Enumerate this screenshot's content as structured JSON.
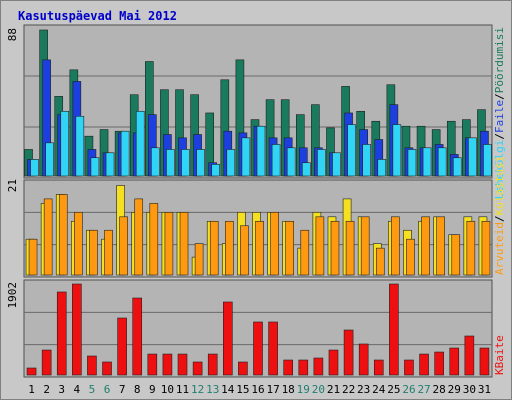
{
  "title": "Kasutuspäevad Mai 2012",
  "legend_separator": "/",
  "x_label_colors": [
    "#000000",
    "#000000",
    "#000000",
    "#000000",
    "#208070",
    "#208070",
    "#000000",
    "#000000",
    "#000000",
    "#000000",
    "#000000",
    "#208070",
    "#208070",
    "#000000",
    "#000000",
    "#000000",
    "#000000",
    "#000000",
    "#208070",
    "#208070",
    "#000000",
    "#000000",
    "#000000",
    "#000000",
    "#000000",
    "#208070",
    "#208070",
    "#000000",
    "#000000",
    "#000000",
    "#000000"
  ],
  "chart_data": [
    {
      "type": "bar",
      "categories": [
        "1",
        "2",
        "3",
        "4",
        "5",
        "6",
        "7",
        "8",
        "9",
        "10",
        "11",
        "12",
        "13",
        "14",
        "15",
        "16",
        "17",
        "18",
        "19",
        "20",
        "21",
        "22",
        "23",
        "24",
        "25",
        "26",
        "27",
        "28",
        "29",
        "30",
        "31"
      ],
      "ylim": [
        0,
        88
      ],
      "yticks": [
        88
      ],
      "series": [
        {
          "name": "Pöördumisi",
          "color": "#1a7a5e",
          "values": [
            16,
            88,
            48,
            64,
            24,
            28,
            27,
            49,
            69,
            52,
            52,
            49,
            38,
            58,
            70,
            34,
            46,
            46,
            37,
            43,
            29,
            54,
            39,
            33,
            55,
            30,
            30,
            28,
            33,
            34,
            40
          ]
        },
        {
          "name": "Faile",
          "color": "#1d3fe0",
          "values": [
            10,
            70,
            37,
            57,
            16,
            14,
            26,
            26,
            37,
            25,
            23,
            25,
            8,
            27,
            26,
            30,
            23,
            23,
            17,
            17,
            14,
            38,
            28,
            22,
            43,
            17,
            17,
            19,
            13,
            23,
            27
          ]
        },
        {
          "name": "Lehekülgi",
          "color": "#30d4f4",
          "values": [
            10,
            20,
            39,
            36,
            11,
            14,
            27,
            39,
            17,
            16,
            16,
            16,
            7,
            16,
            23,
            30,
            19,
            17,
            8,
            16,
            14,
            31,
            19,
            10,
            31,
            16,
            17,
            17,
            11,
            23,
            19
          ]
        }
      ]
    },
    {
      "type": "bar",
      "ylim": [
        0,
        21
      ],
      "yticks": [
        21
      ],
      "series": [
        {
          "name": "Külastusi",
          "color": "#f4e020",
          "values": [
            8,
            16,
            18,
            12,
            10,
            8,
            20,
            14,
            14,
            14,
            14,
            4,
            12,
            7,
            14,
            14,
            14,
            12,
            6,
            14,
            13,
            17,
            13,
            7,
            12,
            10,
            12,
            13,
            9,
            13,
            13
          ]
        },
        {
          "name": "Arvuteid",
          "color": "#ff9a10",
          "values": [
            8,
            17,
            18,
            14,
            10,
            10,
            13,
            17,
            16,
            14,
            14,
            7,
            12,
            12,
            11,
            12,
            14,
            12,
            10,
            13,
            12,
            12,
            13,
            6,
            13,
            8,
            13,
            13,
            9,
            12,
            12
          ]
        }
      ]
    },
    {
      "type": "bar",
      "ylim": [
        0,
        1902
      ],
      "yticks": [
        1902
      ],
      "series": [
        {
          "name": "KBaite",
          "color": "#ee1010",
          "values": [
            146,
            522,
            1735,
            1902,
            397,
            272,
            1191,
            1609,
            438,
            438,
            438,
            272,
            438,
            1526,
            272,
            1108,
            1108,
            313,
            313,
            355,
            522,
            940,
            648,
            313,
            1902,
            313,
            438,
            480,
            564,
            815,
            564
          ]
        }
      ]
    }
  ]
}
